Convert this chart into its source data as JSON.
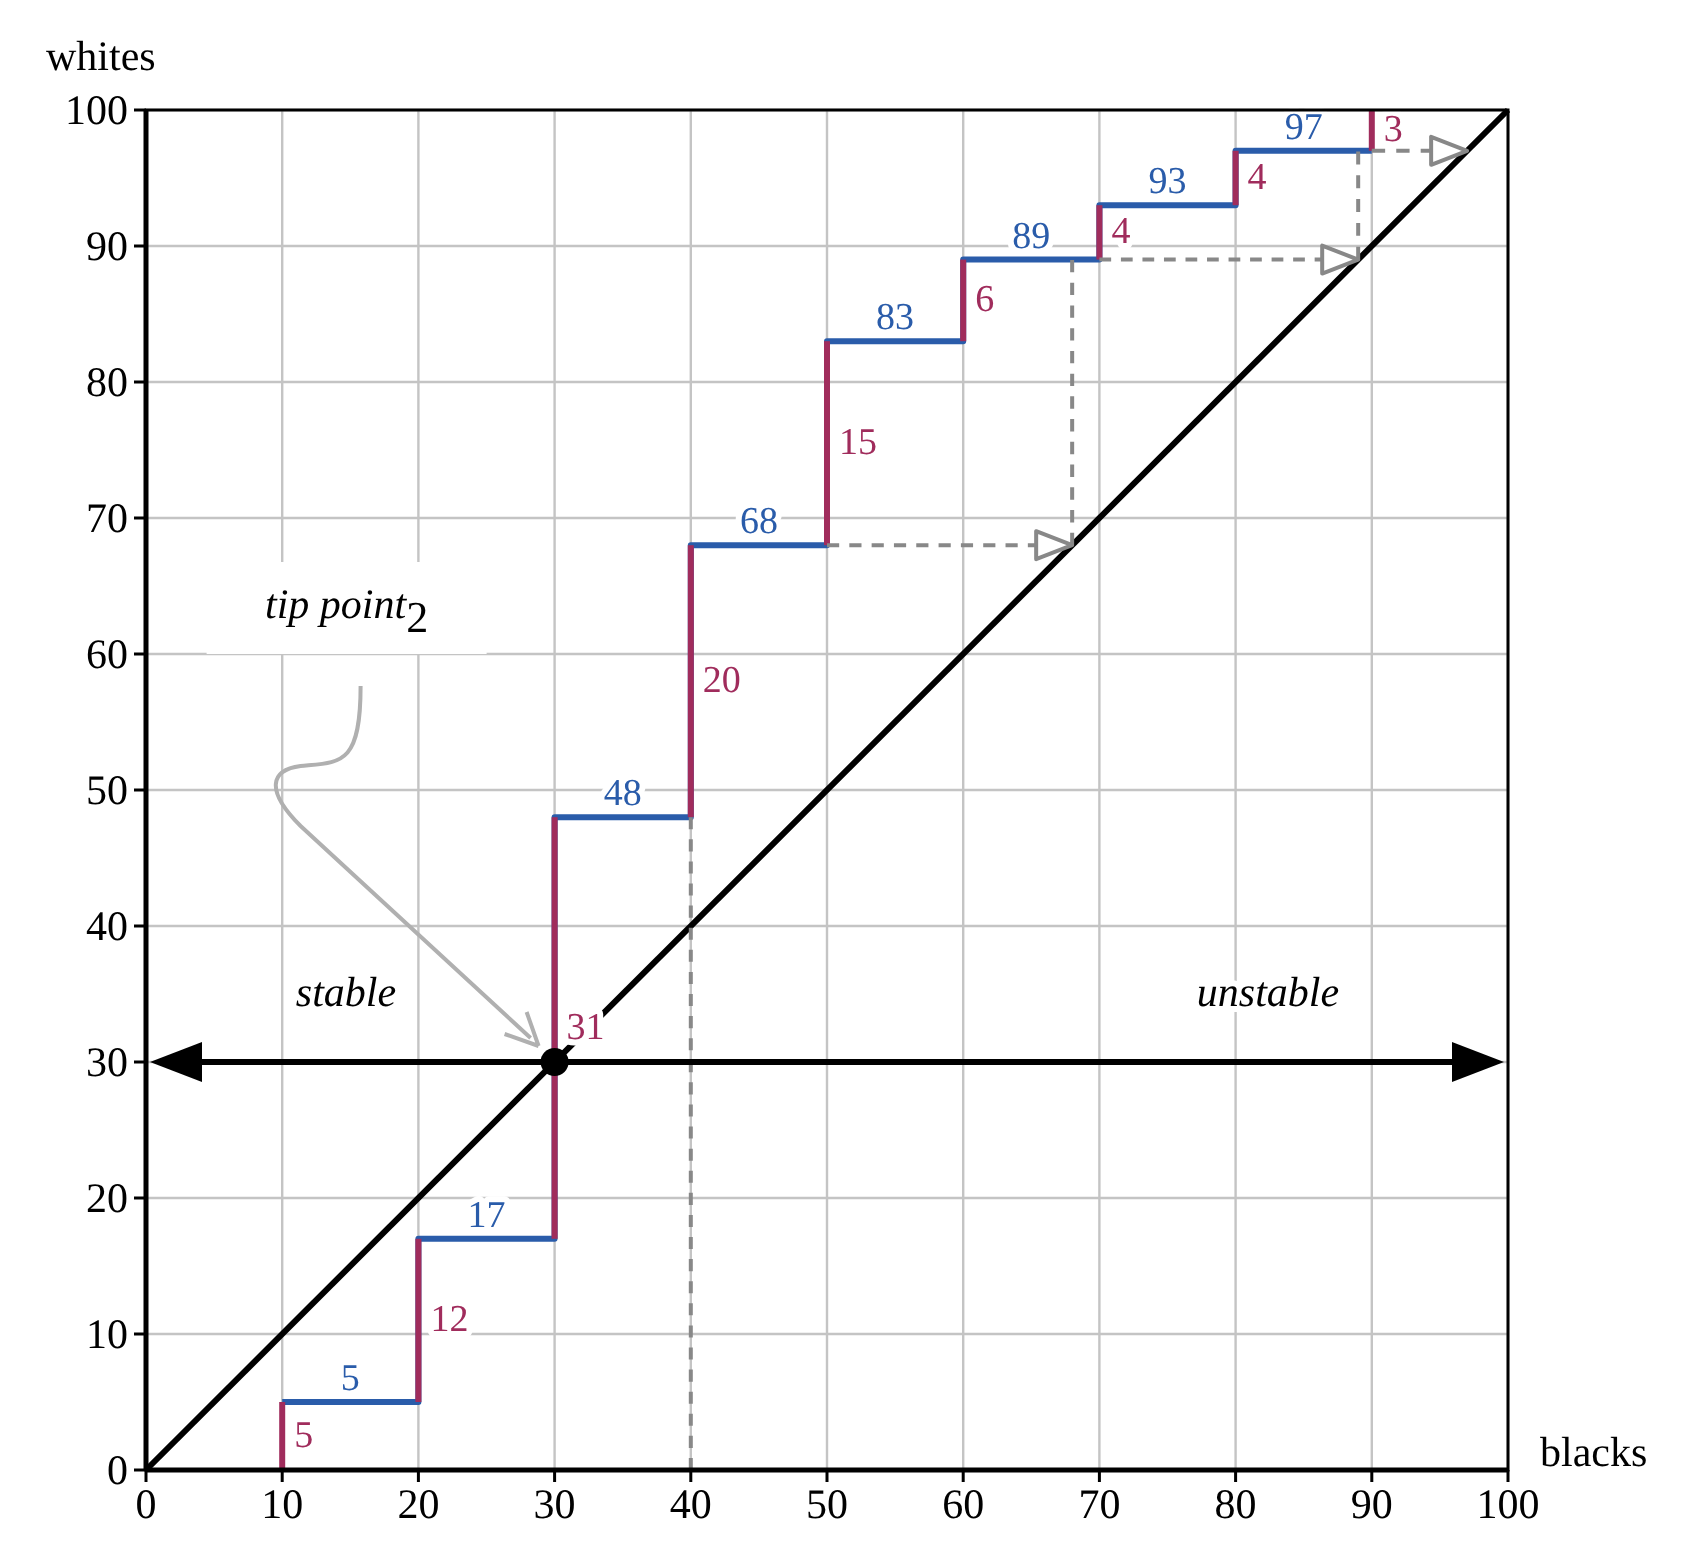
{
  "chart_data": {
    "type": "line",
    "xlabel": "blacks",
    "ylabel": "whites",
    "xlim": [
      0,
      100
    ],
    "ylim": [
      0,
      100
    ],
    "xticks": [
      0,
      10,
      20,
      30,
      40,
      50,
      60,
      70,
      80,
      90,
      100
    ],
    "yticks": [
      0,
      10,
      20,
      30,
      40,
      50,
      60,
      70,
      80,
      90,
      100
    ],
    "grid": true,
    "series": [
      {
        "color": "#000000",
        "x": [
          0,
          100
        ],
        "values": [
          0,
          100
        ],
        "marker": "none"
      },
      {
        "type": "step",
        "color": "#2a5caa",
        "x": [
          10,
          20,
          30,
          40,
          50,
          60,
          70,
          80,
          90
        ],
        "values": [
          5,
          17,
          48,
          68,
          83,
          89,
          93,
          97,
          97
        ],
        "value_labels": [
          "5",
          "17",
          "48",
          "68",
          "83",
          "89",
          "93",
          "97",
          null
        ]
      },
      {
        "type": "bar",
        "color": "#a02c5c",
        "x": [
          10,
          20,
          30,
          40,
          50,
          60,
          70,
          80,
          90
        ],
        "base": [
          0,
          5,
          17,
          48,
          68,
          83,
          89,
          93,
          97
        ],
        "values": [
          5,
          12,
          31,
          20,
          15,
          6,
          4,
          4,
          3
        ],
        "value_labels": [
          "5",
          "12",
          "31",
          "20",
          "15",
          "6",
          "4",
          "4",
          "3"
        ]
      },
      {
        "color": "#888888",
        "line_style": "dashed",
        "x": [
          40,
          40
        ],
        "values": [
          0,
          48
        ]
      },
      {
        "color": "#888888",
        "line_style": "dashed",
        "x": [
          68,
          68
        ],
        "values": [
          68,
          89
        ]
      },
      {
        "color": "#888888",
        "line_style": "dashed",
        "x": [
          89,
          89
        ],
        "values": [
          89,
          97
        ]
      },
      {
        "type": "scatter",
        "color": "#000000",
        "x": [
          30
        ],
        "values": [
          30
        ],
        "marker": "circle"
      }
    ],
    "ref_lines": [
      {
        "axis": "y",
        "value": 30,
        "color": "#000000"
      }
    ],
    "annotations": [
      "stable",
      "unstable",
      "tip point$_{2}$"
    ]
  }
}
